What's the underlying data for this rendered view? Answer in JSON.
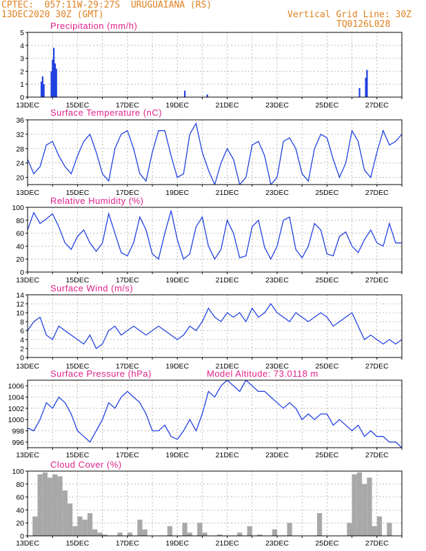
{
  "header": {
    "line1": "CPTEC:  057:11W-29:27S  URUGUAIANA (RS)",
    "line2": "13DEC2020 30Z (GMT)",
    "right1": "Vertical Grid Line: 30Z",
    "right2": "TQ0126L028"
  },
  "colors": {
    "line": "#2040e0",
    "bar": "#2040e0",
    "cloud": "#a8a8a8",
    "title": "#e0208a",
    "header": "#e08020"
  },
  "x_axis": {
    "labels": [
      "13DEC",
      "15DEC",
      "17DEC",
      "19DEC",
      "21DEC",
      "23DEC",
      "25DEC",
      "27DEC"
    ],
    "range_days": [
      0,
      15
    ]
  },
  "chart_data": [
    {
      "type": "bar",
      "title": "Precipitation (mm/h)",
      "ylim": [
        0,
        5
      ],
      "yticks": [
        "0",
        "1",
        "2",
        "3",
        "4",
        "5"
      ],
      "x_days": [
        0.55,
        0.6,
        0.65,
        0.95,
        1.0,
        1.05,
        1.1,
        1.15,
        6.3,
        7.2,
        13.3,
        13.55,
        13.6
      ],
      "values": [
        1.2,
        1.6,
        1.0,
        2.0,
        2.9,
        3.8,
        2.6,
        2.2,
        0.5,
        0.2,
        0.7,
        1.5,
        2.1
      ]
    },
    {
      "type": "line",
      "title": "Surface Temperature (nC)",
      "ylim": [
        18,
        36
      ],
      "yticks": [
        "20",
        "24",
        "28",
        "32",
        "36"
      ],
      "x_days": [
        0,
        0.25,
        0.5,
        0.75,
        1.0,
        1.25,
        1.5,
        1.75,
        2.0,
        2.25,
        2.5,
        2.75,
        3.0,
        3.25,
        3.5,
        3.75,
        4.0,
        4.25,
        4.5,
        4.75,
        5.0,
        5.25,
        5.5,
        5.75,
        6.0,
        6.25,
        6.5,
        6.75,
        7.0,
        7.25,
        7.5,
        7.75,
        8.0,
        8.25,
        8.5,
        8.75,
        9.0,
        9.25,
        9.5,
        9.75,
        10.0,
        10.25,
        10.5,
        10.75,
        11.0,
        11.25,
        11.5,
        11.75,
        12.0,
        12.25,
        12.5,
        12.75,
        13.0,
        13.25,
        13.5,
        13.75,
        14.0,
        14.25,
        14.5,
        14.75,
        15.0
      ],
      "values": [
        25,
        21,
        23,
        29,
        30,
        26,
        23,
        21,
        26,
        30,
        32,
        27,
        21,
        19,
        28,
        32,
        33,
        28,
        21,
        19,
        27,
        33,
        33,
        26,
        20,
        21,
        32,
        35,
        27,
        22,
        18,
        24,
        28,
        25,
        18,
        20,
        29,
        30,
        26,
        18,
        20,
        30,
        31,
        28,
        21,
        19,
        28,
        32,
        31,
        25,
        20,
        24,
        33,
        30,
        22,
        20,
        27,
        33,
        29,
        30,
        32
      ]
    },
    {
      "type": "line",
      "title": "Relative Humidity (%)",
      "ylim": [
        0,
        100
      ],
      "yticks": [
        "0",
        "20",
        "40",
        "60",
        "80",
        "100"
      ],
      "x_days": [
        0,
        0.25,
        0.5,
        0.75,
        1.0,
        1.25,
        1.5,
        1.75,
        2.0,
        2.25,
        2.5,
        2.75,
        3.0,
        3.25,
        3.5,
        3.75,
        4.0,
        4.25,
        4.5,
        4.75,
        5.0,
        5.25,
        5.5,
        5.75,
        6.0,
        6.25,
        6.5,
        6.75,
        7.0,
        7.25,
        7.5,
        7.75,
        8.0,
        8.25,
        8.5,
        8.75,
        9.0,
        9.25,
        9.5,
        9.75,
        10.0,
        10.25,
        10.5,
        10.75,
        11.0,
        11.25,
        11.5,
        11.75,
        12.0,
        12.25,
        12.5,
        12.75,
        13.0,
        13.25,
        13.5,
        13.75,
        14.0,
        14.25,
        14.5,
        14.75,
        15.0
      ],
      "values": [
        65,
        92,
        75,
        82,
        90,
        70,
        45,
        35,
        55,
        65,
        45,
        32,
        45,
        90,
        60,
        30,
        25,
        45,
        85,
        65,
        28,
        20,
        60,
        95,
        50,
        20,
        28,
        70,
        85,
        40,
        20,
        35,
        80,
        60,
        22,
        25,
        70,
        80,
        38,
        20,
        40,
        80,
        85,
        35,
        22,
        40,
        75,
        65,
        28,
        25,
        55,
        62,
        40,
        30,
        50,
        65,
        45,
        40,
        75,
        45,
        45
      ]
    },
    {
      "type": "line",
      "title": "Surface Wind (m/s)",
      "ylim": [
        0,
        14
      ],
      "yticks": [
        "0",
        "2",
        "4",
        "6",
        "8",
        "10",
        "12",
        "14"
      ],
      "x_days": [
        0,
        0.25,
        0.5,
        0.75,
        1.0,
        1.25,
        1.5,
        1.75,
        2.0,
        2.25,
        2.5,
        2.75,
        3.0,
        3.25,
        3.5,
        3.75,
        4.0,
        4.25,
        4.5,
        4.75,
        5.0,
        5.25,
        5.5,
        5.75,
        6.0,
        6.25,
        6.5,
        6.75,
        7.0,
        7.25,
        7.5,
        7.75,
        8.0,
        8.25,
        8.5,
        8.75,
        9.0,
        9.25,
        9.5,
        9.75,
        10.0,
        10.25,
        10.5,
        10.75,
        11.0,
        11.25,
        11.5,
        11.75,
        12.0,
        12.25,
        12.5,
        12.75,
        13.0,
        13.25,
        13.5,
        13.75,
        14.0,
        14.25,
        14.5,
        14.75,
        15.0
      ],
      "values": [
        6,
        8,
        9,
        5,
        4,
        7,
        6,
        5,
        4,
        3,
        5,
        2,
        3,
        6,
        7,
        5,
        6,
        7,
        6,
        5,
        6,
        7,
        6,
        5,
        4,
        5,
        7,
        6,
        8,
        11,
        9,
        8,
        10,
        9,
        10,
        8,
        11,
        9,
        10,
        12,
        10,
        9,
        8,
        10,
        9,
        8,
        9,
        10,
        9,
        7,
        8,
        9,
        10,
        7,
        4,
        5,
        4,
        3,
        4,
        3,
        4
      ]
    },
    {
      "type": "line",
      "title": "Surface Pressure (hPa)",
      "annotation": "Model Altitude: 73.0118 m",
      "ylim": [
        995,
        1007
      ],
      "yticks": [
        "996",
        "998",
        "1000",
        "1002",
        "1004",
        "1006"
      ],
      "x_days": [
        0,
        0.25,
        0.5,
        0.75,
        1.0,
        1.25,
        1.5,
        1.75,
        2.0,
        2.25,
        2.5,
        2.75,
        3.0,
        3.25,
        3.5,
        3.75,
        4.0,
        4.25,
        4.5,
        4.75,
        5.0,
        5.25,
        5.5,
        5.75,
        6.0,
        6.25,
        6.5,
        6.75,
        7.0,
        7.25,
        7.5,
        7.75,
        8.0,
        8.25,
        8.5,
        8.75,
        9.0,
        9.25,
        9.5,
        9.75,
        10.0,
        10.25,
        10.5,
        10.75,
        11.0,
        11.25,
        11.5,
        11.75,
        12.0,
        12.25,
        12.5,
        12.75,
        13.0,
        13.25,
        13.5,
        13.75,
        14.0,
        14.25,
        14.5,
        14.75,
        15.0
      ],
      "values": [
        998.5,
        998,
        1000,
        1003,
        1002,
        1004,
        1003,
        1001,
        998,
        997,
        996,
        998,
        1000,
        1003,
        1002,
        1004,
        1005,
        1004,
        1003,
        1001,
        998,
        998,
        999,
        997,
        996.5,
        998,
        1000,
        998,
        1001,
        1005,
        1004,
        1006,
        1007,
        1006,
        1005,
        1007,
        1006,
        1005,
        1005,
        1004,
        1003,
        1002,
        1003,
        1002,
        1000,
        1001,
        1000,
        1001,
        1001,
        999,
        1000,
        999,
        998,
        999,
        997,
        998,
        997,
        997,
        996,
        996,
        995
      ]
    },
    {
      "type": "area",
      "title": "Cloud Cover (%)",
      "ylim": [
        0,
        100
      ],
      "yticks": [
        "0",
        "20",
        "40",
        "60",
        "80",
        "100"
      ],
      "x_days": [
        0,
        0.2,
        0.4,
        0.6,
        0.8,
        1.0,
        1.2,
        1.4,
        1.6,
        1.8,
        2.0,
        2.2,
        2.4,
        2.6,
        2.8,
        3.0,
        3.2,
        3.4,
        3.6,
        3.8,
        4.0,
        4.2,
        4.4,
        4.6,
        4.8,
        5.0,
        5.2,
        5.4,
        5.6,
        5.8,
        6.0,
        6.2,
        6.4,
        6.6,
        6.8,
        7.0,
        7.2,
        7.4,
        7.6,
        7.8,
        8.0,
        8.2,
        8.4,
        8.6,
        8.8,
        9.0,
        9.2,
        9.4,
        9.6,
        9.8,
        10.0,
        10.2,
        10.4,
        10.6,
        10.8,
        11.0,
        11.2,
        11.4,
        11.6,
        11.8,
        12.0,
        12.2,
        12.4,
        12.6,
        12.8,
        13.0,
        13.2,
        13.4,
        13.6,
        13.8,
        14.0,
        14.2,
        14.4,
        14.6,
        14.8,
        15.0
      ],
      "values": [
        0,
        30,
        95,
        98,
        90,
        95,
        92,
        70,
        50,
        15,
        30,
        25,
        35,
        10,
        5,
        2,
        0,
        0,
        5,
        0,
        5,
        0,
        25,
        10,
        0,
        0,
        0,
        0,
        15,
        0,
        0,
        20,
        5,
        0,
        20,
        5,
        0,
        0,
        2,
        0,
        0,
        0,
        5,
        0,
        15,
        0,
        2,
        0,
        0,
        10,
        0,
        0,
        20,
        0,
        0,
        0,
        0,
        0,
        35,
        0,
        0,
        0,
        0,
        0,
        20,
        95,
        98,
        80,
        90,
        15,
        30,
        0,
        20,
        0,
        0,
        0
      ]
    }
  ]
}
